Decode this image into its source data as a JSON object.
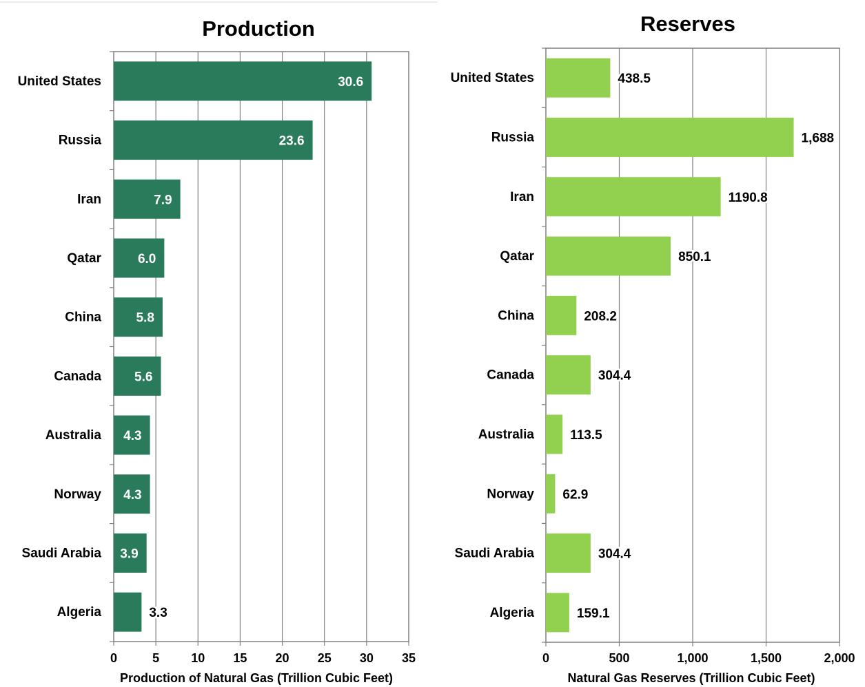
{
  "chart_data": [
    {
      "type": "bar",
      "orientation": "horizontal",
      "title": "Production",
      "xlabel": "Production of Natural Gas (Trillion Cubic Feet)",
      "ylabel": "",
      "categories": [
        "United States",
        "Russia",
        "Iran",
        "Qatar",
        "China",
        "Canada",
        "Australia",
        "Norway",
        "Saudi Arabia",
        "Algeria"
      ],
      "values": [
        30.6,
        23.6,
        7.9,
        6.0,
        5.8,
        5.6,
        4.3,
        4.3,
        3.9,
        3.3
      ],
      "data_labels": [
        "30.6",
        "23.6",
        "7.9",
        "6.0",
        "5.8",
        "5.6",
        "4.3",
        "4.3",
        "3.9",
        "3.3"
      ],
      "xlim": [
        0,
        35
      ],
      "ticks": [
        0,
        5,
        10,
        15,
        20,
        25,
        30,
        35
      ],
      "tick_labels": [
        "0",
        "5",
        "10",
        "15",
        "20",
        "25",
        "30",
        "35"
      ],
      "grid": true,
      "bar_color": "#2a7a5c",
      "label_inside_color": "#ffffff",
      "label_outside_color": "#000000"
    },
    {
      "type": "bar",
      "orientation": "horizontal",
      "title": "Reserves",
      "xlabel": "Natural Gas Reserves (Trillion Cubic Feet)",
      "ylabel": "",
      "categories": [
        "United States",
        "Russia",
        "Iran",
        "Qatar",
        "China",
        "Canada",
        "Australia",
        "Norway",
        "Saudi Arabia",
        "Algeria"
      ],
      "values": [
        438.5,
        1688,
        1190.8,
        850.1,
        208.2,
        304.4,
        113.5,
        62.9,
        304.4,
        159.1
      ],
      "data_labels": [
        "438.5",
        "1,688",
        "1190.8",
        "850.1",
        "208.2",
        "304.4",
        "113.5",
        "62.9",
        "304.4",
        "159.1"
      ],
      "xlim": [
        0,
        2000
      ],
      "ticks": [
        0,
        500,
        1000,
        1500,
        2000
      ],
      "tick_labels": [
        "0",
        "500",
        "1,000",
        "1,500",
        "2,000"
      ],
      "grid": true,
      "bar_color": "#92d050",
      "label_inside_color": "#000000",
      "label_outside_color": "#000000"
    }
  ]
}
